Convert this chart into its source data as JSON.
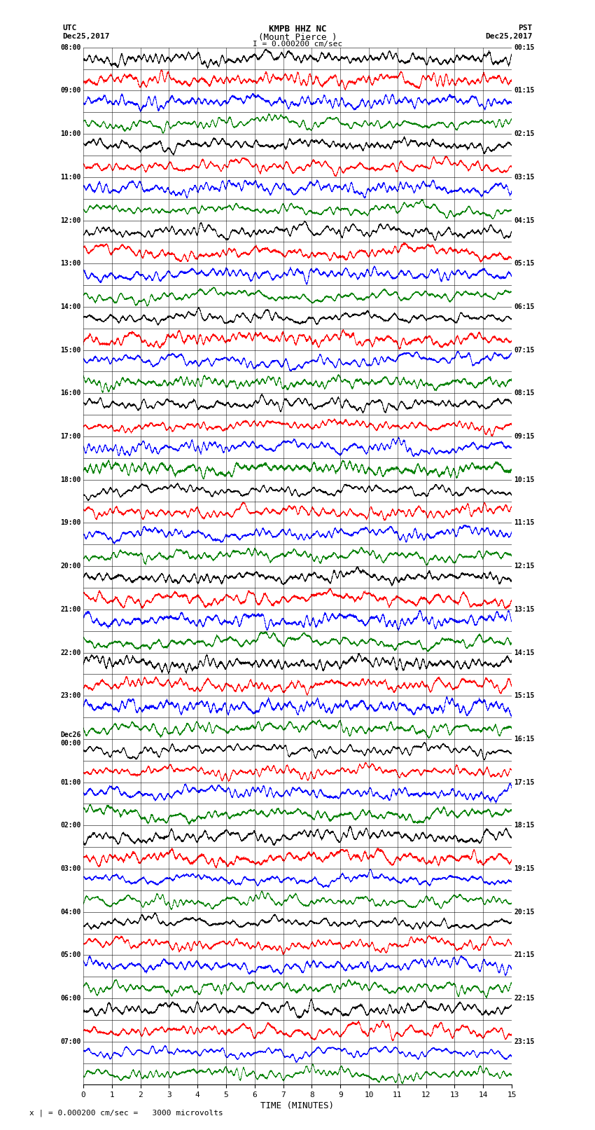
{
  "title_line1": "KMPB HHZ NC",
  "title_line2": "(Mount Pierce )",
  "title_line3": "I = 0.000200 cm/sec",
  "left_label_line1": "UTC",
  "left_label_line2": "Dec25,2017",
  "right_label_line1": "PST",
  "right_label_line2": "Dec25,2017",
  "bottom_label": "TIME (MINUTES)",
  "footnote": "x | = 0.000200 cm/sec =   3000 microvolts",
  "utc_times": [
    "08:00",
    "",
    "09:00",
    "",
    "10:00",
    "",
    "11:00",
    "",
    "12:00",
    "",
    "13:00",
    "",
    "14:00",
    "",
    "15:00",
    "",
    "16:00",
    "",
    "17:00",
    "",
    "18:00",
    "",
    "19:00",
    "",
    "20:00",
    "",
    "21:00",
    "",
    "22:00",
    "",
    "23:00",
    "",
    "Dec26\n00:00",
    "",
    "01:00",
    "",
    "02:00",
    "",
    "03:00",
    "",
    "04:00",
    "",
    "05:00",
    "",
    "06:00",
    "",
    "07:00",
    ""
  ],
  "pst_times": [
    "00:15",
    "01:15",
    "02:15",
    "03:15",
    "04:15",
    "05:15",
    "06:15",
    "07:15",
    "08:15",
    "09:15",
    "10:15",
    "11:15",
    "12:15",
    "13:15",
    "14:15",
    "15:15",
    "16:15",
    "17:15",
    "18:15",
    "19:15",
    "20:15",
    "21:15",
    "22:15",
    "23:15"
  ],
  "num_rows": 48,
  "colors_cycle": [
    "black",
    "red",
    "blue",
    "green"
  ],
  "background_color": "white",
  "trace_amplitude": 0.48,
  "seed": 42,
  "xlim": [
    0,
    15
  ],
  "xticks": [
    0,
    1,
    2,
    3,
    4,
    5,
    6,
    7,
    8,
    9,
    10,
    11,
    12,
    13,
    14,
    15
  ],
  "figsize": [
    8.5,
    16.13
  ],
  "dpi": 100
}
